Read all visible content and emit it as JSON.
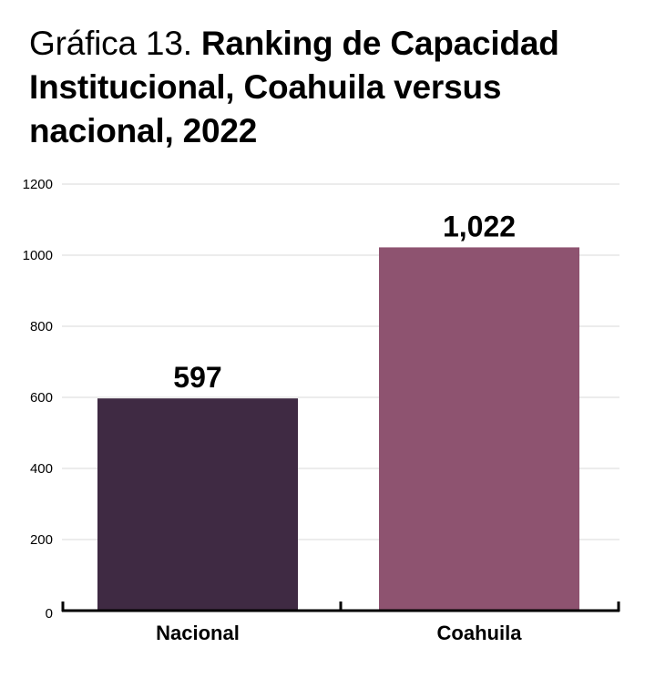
{
  "chart_data": {
    "type": "bar",
    "title_prefix": "Gráfica 13.",
    "title": "Ranking de Capacidad Institucional, Coahuila versus nacional, 2022",
    "categories": [
      "Nacional",
      "Coahuila"
    ],
    "values": [
      597,
      1022
    ],
    "value_labels": [
      "597",
      "1,022"
    ],
    "colors": [
      "#3f2a43",
      "#8e5370"
    ],
    "xlabel": "",
    "ylabel": "",
    "ylim": [
      0,
      1200
    ],
    "yticks": [
      0,
      200,
      400,
      600,
      800,
      1000,
      1200
    ],
    "ytick_labels": [
      "0",
      "200",
      "400",
      "600",
      "800",
      "1000",
      "1200"
    ],
    "grid": true,
    "legend": "none"
  }
}
